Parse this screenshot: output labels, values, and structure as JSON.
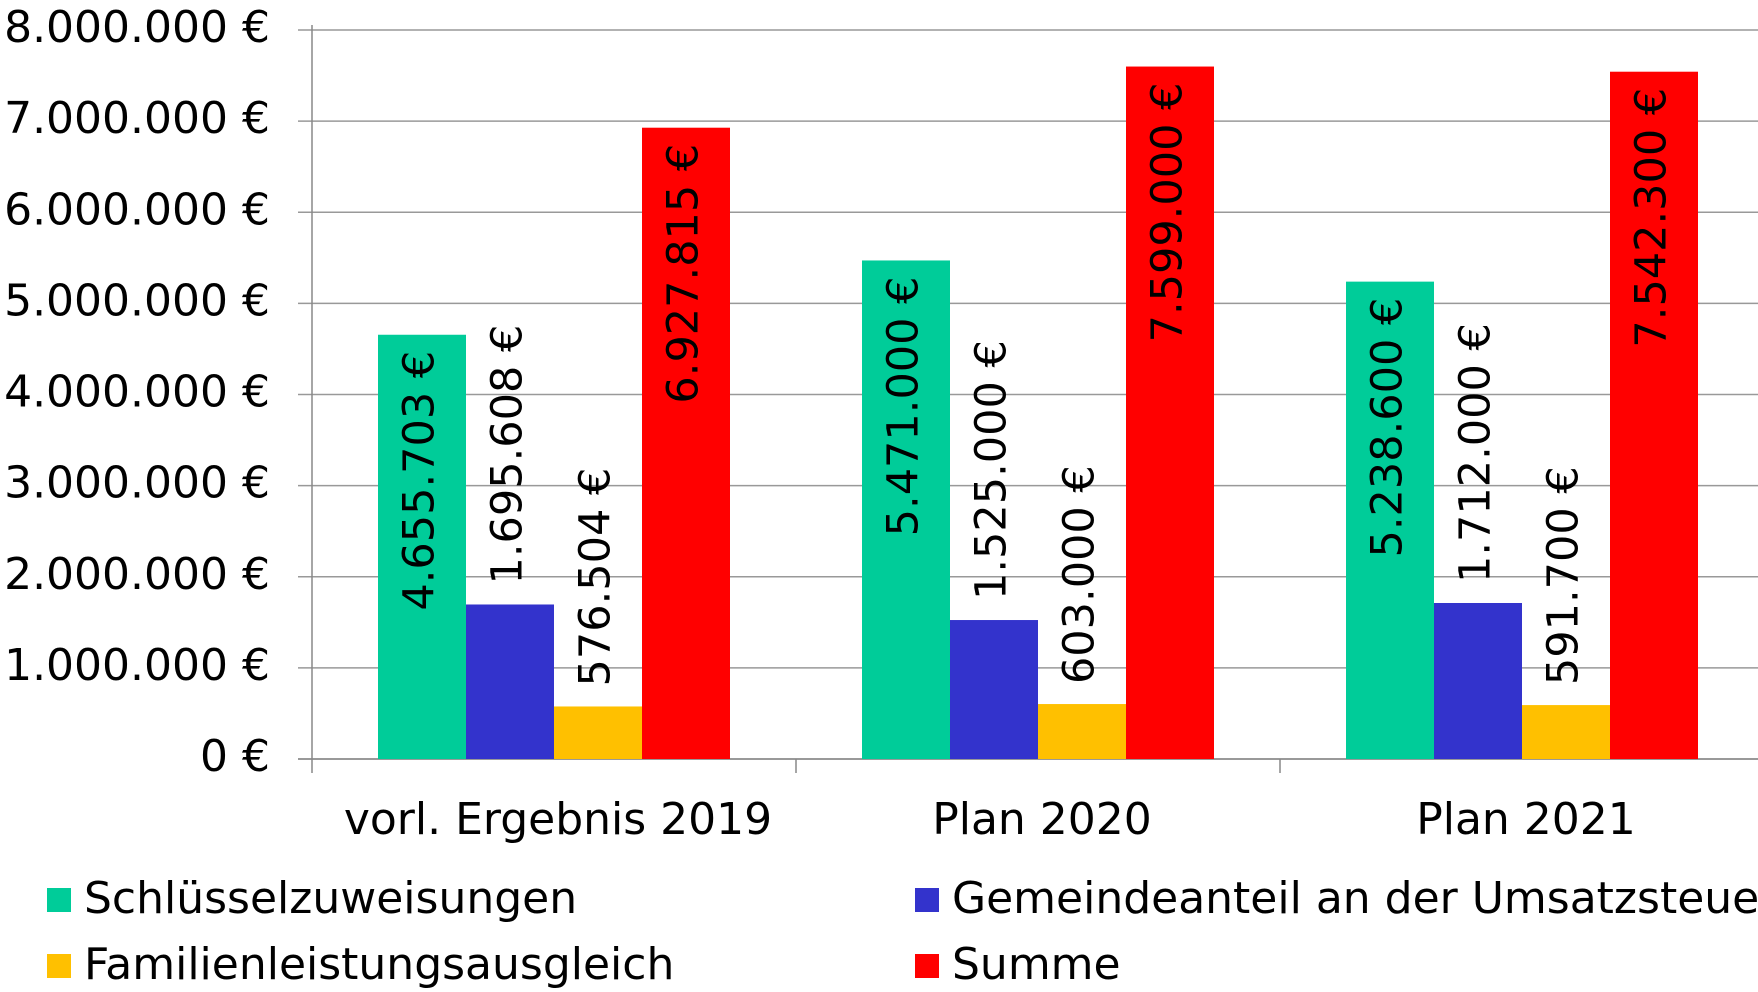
{
  "chart_data": {
    "type": "bar",
    "categories": [
      "vorl. Ergebnis 2019",
      "Plan 2020",
      "Plan 2021"
    ],
    "series": [
      {
        "name": "Schlüsselzuweisungen",
        "color": "#00cc99",
        "values": [
          4655703,
          5471000,
          5238600
        ],
        "value_labels": [
          "4.655.703 €",
          "5.471.000 €",
          "5.238.600 €"
        ]
      },
      {
        "name": "Gemeindeanteil an der Umsatzsteuer",
        "color": "#3333cc",
        "values": [
          1695608,
          1525000,
          1712000
        ],
        "value_labels": [
          "1.695.608 €",
          "1.525.000 €",
          "1.712.000 €"
        ]
      },
      {
        "name": "Familienleistungsausgleich",
        "color": "#ffc000",
        "values": [
          576504,
          603000,
          591700
        ],
        "value_labels": [
          "576.504 €",
          "603.000 €",
          "591.700 €"
        ]
      },
      {
        "name": "Summe",
        "color": "#ff0000",
        "values": [
          6927815,
          7599000,
          7542300
        ],
        "value_labels": [
          "6.927.815 €",
          "7.599.000 €",
          "7.542.300 €"
        ]
      }
    ],
    "ylim": [
      0,
      8000000
    ],
    "yticks": [
      {
        "value": 0,
        "label": "0 €"
      },
      {
        "value": 1000000,
        "label": "1.000.000 €"
      },
      {
        "value": 2000000,
        "label": "2.000.000 €"
      },
      {
        "value": 3000000,
        "label": "3.000.000 €"
      },
      {
        "value": 4000000,
        "label": "4.000.000 €"
      },
      {
        "value": 5000000,
        "label": "5.000.000 €"
      },
      {
        "value": 6000000,
        "label": "6.000.000 €"
      },
      {
        "value": 7000000,
        "label": "7.000.000 €"
      },
      {
        "value": 8000000,
        "label": "8.000.000 €"
      }
    ],
    "grid": true,
    "legend": "bottom"
  }
}
